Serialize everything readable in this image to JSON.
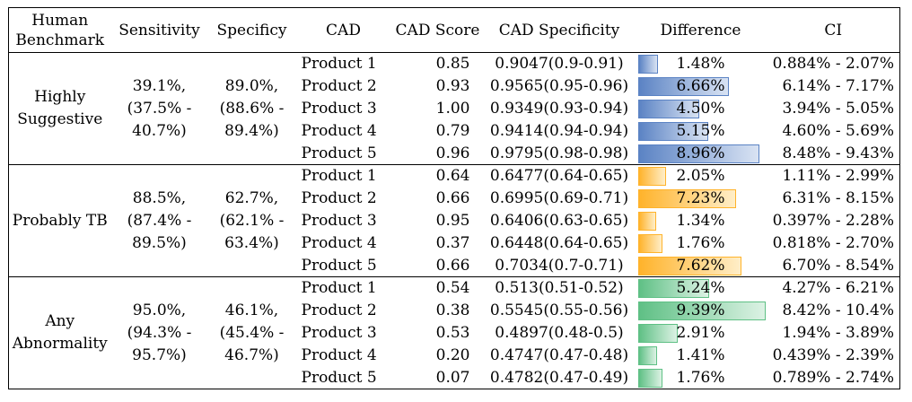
{
  "headers": {
    "human_benchmark": "Human Benchmark",
    "sensitivity": "Sensitivity",
    "specificity": "Specificy",
    "cad": "CAD",
    "cad_score": "CAD Score",
    "cad_specificity": "CAD Specificity",
    "difference": "Difference",
    "ci": "CI"
  },
  "bar_colors": {
    "blue": "#5b83c4",
    "orange": "#ffb32b",
    "green": "#5fc085"
  },
  "groups": [
    {
      "benchmark": "Highly Suggestive",
      "sensitivity": "39.1%, (37.5% - 40.7%)",
      "specificity": "89.0%, (88.6% - 89.4%)",
      "color": "blue",
      "rows": [
        {
          "product": "Product 1",
          "score": "0.85",
          "cad_spec": "0.9047(0.9-0.91)",
          "diff": "1.48%",
          "diff_value": 1.48,
          "ci": "0.884% - 2.07%"
        },
        {
          "product": "Product 2",
          "score": "0.93",
          "cad_spec": "0.9565(0.95-0.96)",
          "diff": "6.66%",
          "diff_value": 6.66,
          "ci": "6.14% - 7.17%"
        },
        {
          "product": "Product 3",
          "score": "1.00",
          "cad_spec": "0.9349(0.93-0.94)",
          "diff": "4.50%",
          "diff_value": 4.5,
          "ci": "3.94% - 5.05%"
        },
        {
          "product": "Product 4",
          "score": "0.79",
          "cad_spec": "0.9414(0.94-0.94)",
          "diff": "5.15%",
          "diff_value": 5.15,
          "ci": "4.60% - 5.69%"
        },
        {
          "product": "Product 5",
          "score": "0.96",
          "cad_spec": "0.9795(0.98-0.98)",
          "diff": "8.96%",
          "diff_value": 8.96,
          "ci": "8.48% - 9.43%"
        }
      ]
    },
    {
      "benchmark": "Probably TB",
      "sensitivity": "88.5%, (87.4% - 89.5%)",
      "specificity": "62.7%, (62.1% - 63.4%)",
      "color": "orange",
      "rows": [
        {
          "product": "Product 1",
          "score": "0.64",
          "cad_spec": "0.6477(0.64-0.65)",
          "diff": "2.05%",
          "diff_value": 2.05,
          "ci": "1.11% - 2.99%"
        },
        {
          "product": "Product 2",
          "score": "0.66",
          "cad_spec": "0.6995(0.69-0.71)",
          "diff": "7.23%",
          "diff_value": 7.23,
          "ci": "6.31% - 8.15%"
        },
        {
          "product": "Product 3",
          "score": "0.95",
          "cad_spec": "0.6406(0.63-0.65)",
          "diff": "1.34%",
          "diff_value": 1.34,
          "ci": "0.397% - 2.28%"
        },
        {
          "product": "Product 4",
          "score": "0.37",
          "cad_spec": "0.6448(0.64-0.65)",
          "diff": "1.76%",
          "diff_value": 1.76,
          "ci": "0.818% - 2.70%"
        },
        {
          "product": "Product 5",
          "score": "0.66",
          "cad_spec": "0.7034(0.7-0.71)",
          "diff": "7.62%",
          "diff_value": 7.62,
          "ci": "6.70% - 8.54%"
        }
      ]
    },
    {
      "benchmark": "Any Abnormality",
      "sensitivity": "95.0%, (94.3% - 95.7%)",
      "specificity": "46.1%, (45.4% - 46.7%)",
      "color": "green",
      "rows": [
        {
          "product": "Product 1",
          "score": "0.54",
          "cad_spec": "0.513(0.51-0.52)",
          "diff": "5.24%",
          "diff_value": 5.24,
          "ci": "4.27% - 6.21%"
        },
        {
          "product": "Product 2",
          "score": "0.38",
          "cad_spec": "0.5545(0.55-0.56)",
          "diff": "9.39%",
          "diff_value": 9.39,
          "ci": "8.42% - 10.4%"
        },
        {
          "product": "Product 3",
          "score": "0.53",
          "cad_spec": "0.4897(0.48-0.5)",
          "diff": "2.91%",
          "diff_value": 2.91,
          "ci": "1.94% - 3.89%"
        },
        {
          "product": "Product 4",
          "score": "0.20",
          "cad_spec": "0.4747(0.47-0.48)",
          "diff": "1.41%",
          "diff_value": 1.41,
          "ci": "0.439% - 2.39%"
        },
        {
          "product": "Product 5",
          "score": "0.07",
          "cad_spec": "0.4782(0.47-0.49)",
          "diff": "1.76%",
          "diff_value": 1.76,
          "ci": "0.789% - 2.74%"
        }
      ]
    }
  ]
}
